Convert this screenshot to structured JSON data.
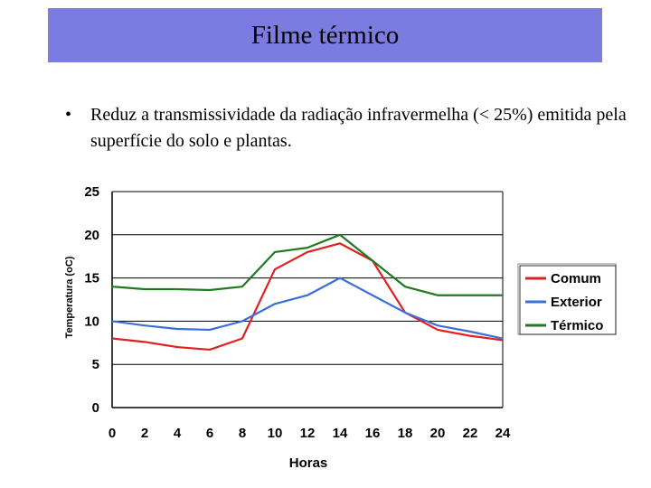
{
  "slide": {
    "title": "Filme térmico",
    "bullet_symbol": "•",
    "bullet_text": "Reduz a transmissividade da radiação infravermelha (< 25%) emitida pela superfície do solo e plantas."
  },
  "chart_data": {
    "type": "line",
    "xlabel": "Horas",
    "ylabel": "Temperatura (oC)",
    "x": [
      0,
      2,
      4,
      6,
      8,
      10,
      12,
      14,
      16,
      18,
      20,
      22,
      24
    ],
    "xticks": [
      "0",
      "2",
      "4",
      "6",
      "8",
      "10",
      "12",
      "14",
      "16",
      "18",
      "20",
      "22",
      "24"
    ],
    "yticks": [
      "0",
      "5",
      "10",
      "15",
      "20",
      "25"
    ],
    "xlim": [
      0,
      24
    ],
    "ylim": [
      0,
      25
    ],
    "grid": "horizontal",
    "legend_position": "right",
    "series": [
      {
        "name": "Comum",
        "color": "#e02020",
        "values": [
          8,
          7.6,
          7,
          6.7,
          8,
          16,
          18,
          19,
          17,
          11,
          9,
          8.3,
          7.8
        ]
      },
      {
        "name": "Exterior",
        "color": "#3a6fd8",
        "values": [
          10,
          9.5,
          9.1,
          9,
          10,
          12,
          13,
          15,
          13,
          11,
          9.5,
          8.8,
          8
        ]
      },
      {
        "name": "Térmico",
        "color": "#1f7a1f",
        "values": [
          14,
          13.7,
          13.7,
          13.6,
          14,
          18,
          18.5,
          20,
          17,
          14,
          13,
          13,
          13
        ]
      }
    ]
  }
}
